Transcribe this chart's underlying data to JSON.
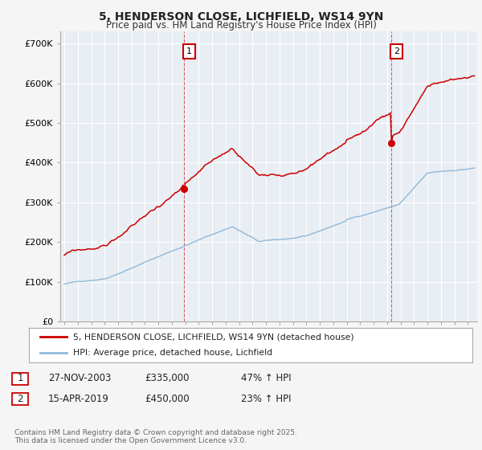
{
  "title_line1": "5, HENDERSON CLOSE, LICHFIELD, WS14 9YN",
  "title_line2": "Price paid vs. HM Land Registry's House Price Index (HPI)",
  "ylabel_ticks": [
    "£0",
    "£100K",
    "£200K",
    "£300K",
    "£400K",
    "£500K",
    "£600K",
    "£700K"
  ],
  "ytick_values": [
    0,
    100000,
    200000,
    300000,
    400000,
    500000,
    600000,
    700000
  ],
  "ylim": [
    0,
    730000
  ],
  "xlim_start": 1994.7,
  "xlim_end": 2025.7,
  "hpi_color": "#90b8d8",
  "price_color": "#cc0000",
  "vline1_x": 2003.9,
  "vline2_x": 2019.3,
  "legend_label1": "5, HENDERSON CLOSE, LICHFIELD, WS14 9YN (detached house)",
  "legend_label2": "HPI: Average price, detached house, Lichfield",
  "table_entries": [
    {
      "num": "1",
      "date": "27-NOV-2003",
      "price": "£335,000",
      "change": "47% ↑ HPI"
    },
    {
      "num": "2",
      "date": "15-APR-2019",
      "price": "£450,000",
      "change": "23% ↑ HPI"
    }
  ],
  "footer": "Contains HM Land Registry data © Crown copyright and database right 2025.\nThis data is licensed under the Open Government Licence v3.0.",
  "background_color": "#f5f5f5",
  "plot_bg_color": "#e8eef4",
  "grid_color": "#ffffff"
}
